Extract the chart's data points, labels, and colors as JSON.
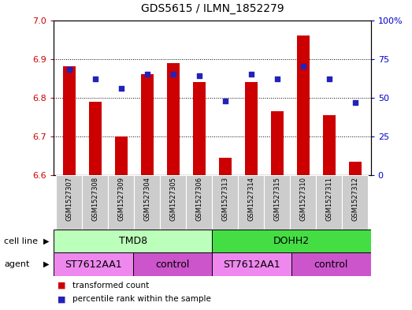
{
  "title": "GDS5615 / ILMN_1852279",
  "samples": [
    "GSM1527307",
    "GSM1527308",
    "GSM1527309",
    "GSM1527304",
    "GSM1527305",
    "GSM1527306",
    "GSM1527313",
    "GSM1527314",
    "GSM1527315",
    "GSM1527310",
    "GSM1527311",
    "GSM1527312"
  ],
  "bar_values": [
    6.88,
    6.79,
    6.7,
    6.86,
    6.89,
    6.84,
    6.645,
    6.84,
    6.765,
    6.96,
    6.755,
    6.635
  ],
  "percentile_values": [
    68,
    62,
    56,
    65,
    65,
    64,
    48,
    65,
    62,
    70,
    62,
    47
  ],
  "bar_bottom": 6.6,
  "ylim_left": [
    6.6,
    7.0
  ],
  "ylim_right": [
    0,
    100
  ],
  "yticks_left": [
    6.6,
    6.7,
    6.8,
    6.9,
    7.0
  ],
  "yticks_right": [
    0,
    25,
    50,
    75,
    100
  ],
  "bar_color": "#cc0000",
  "dot_color": "#2222bb",
  "bar_width": 0.5,
  "cell_line_colors": [
    "#bbffbb",
    "#44dd44"
  ],
  "cell_line_groups": [
    {
      "label": "TMD8",
      "start": 0,
      "end": 6
    },
    {
      "label": "DOHH2",
      "start": 6,
      "end": 12
    }
  ],
  "agent_groups": [
    {
      "label": "ST7612AA1",
      "start": 0,
      "end": 3
    },
    {
      "label": "control",
      "start": 3,
      "end": 6
    },
    {
      "label": "ST7612AA1",
      "start": 6,
      "end": 9
    },
    {
      "label": "control",
      "start": 9,
      "end": 12
    }
  ],
  "agent_colors": [
    "#ee88ee",
    "#cc55cc",
    "#ee88ee",
    "#cc55cc"
  ],
  "dotted_grid_values": [
    6.7,
    6.8,
    6.9
  ],
  "legend_red_label": "transformed count",
  "legend_blue_label": "percentile rank within the sample",
  "cell_line_label": "cell line",
  "agent_label": "agent",
  "bar_color_left": "#cc0000",
  "tick_label_color_right": "#0000cc",
  "sample_bg_color": "#cccccc",
  "sample_bg_edge": "#ffffff"
}
